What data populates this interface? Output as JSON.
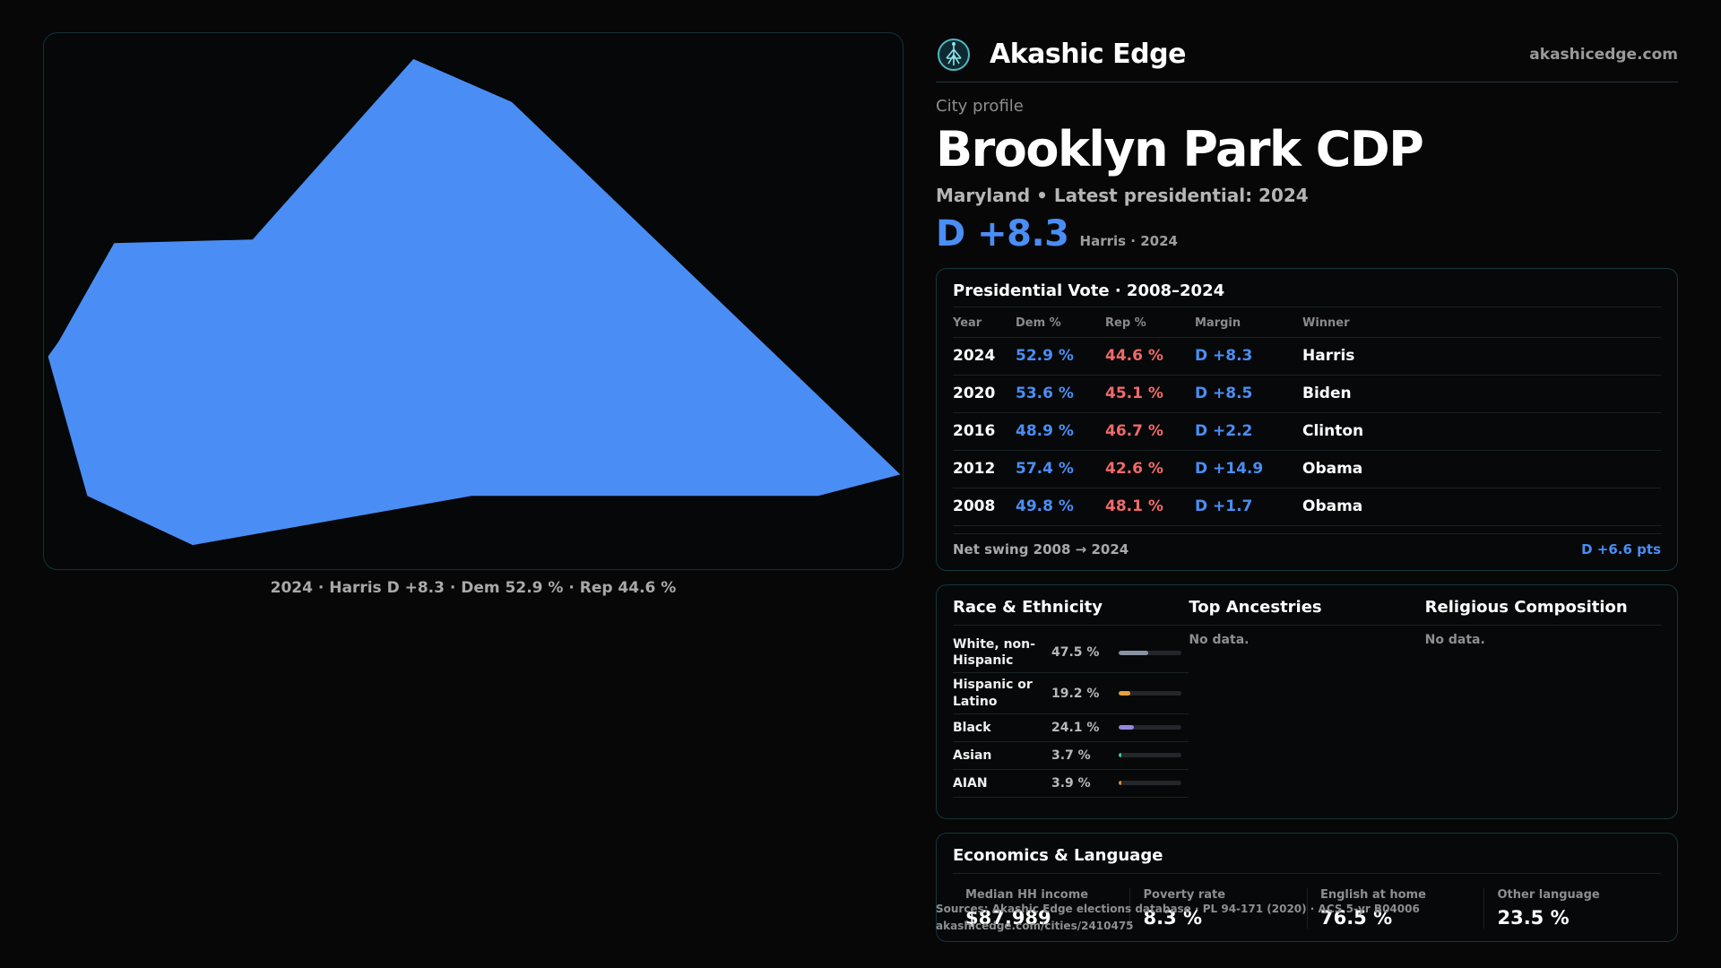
{
  "map": {
    "fill_color": "#4a8ef5",
    "caption": "2024 · Harris D +8.3 · Dem 52.9 % · Rep 44.6 %"
  },
  "header": {
    "brand_name": "Akashic Edge",
    "brand_url": "akashicedge.com",
    "logo_icon": "tree-of-life-icon"
  },
  "profile": {
    "eyebrow": "City profile",
    "title": "Brooklyn Park CDP",
    "subtitle": "Maryland • Latest presidential: 2024",
    "headline_margin": "D +8.3",
    "headline_note": "Harris · 2024"
  },
  "presidential": {
    "title": "Presidential Vote · 2008–2024",
    "columns": [
      "Year",
      "Dem %",
      "Rep %",
      "Margin",
      "Winner"
    ],
    "rows": [
      {
        "year": "2024",
        "dem": "52.9 %",
        "rep": "44.6 %",
        "margin": "D +8.3",
        "winner": "Harris"
      },
      {
        "year": "2020",
        "dem": "53.6 %",
        "rep": "45.1 %",
        "margin": "D +8.5",
        "winner": "Biden"
      },
      {
        "year": "2016",
        "dem": "48.9 %",
        "rep": "46.7 %",
        "margin": "D +2.2",
        "winner": "Clinton"
      },
      {
        "year": "2012",
        "dem": "57.4 %",
        "rep": "42.6 %",
        "margin": "D +14.9",
        "winner": "Obama"
      },
      {
        "year": "2008",
        "dem": "49.8 %",
        "rep": "48.1 %",
        "margin": "D +1.7",
        "winner": "Obama"
      }
    ],
    "swing_label": "Net swing 2008 → 2024",
    "swing_value": "D +6.6 pts"
  },
  "race": {
    "title": "Race & Ethnicity",
    "items": [
      {
        "label": "White, non-Hispanic",
        "pct": "47.5 %",
        "value": 47.5,
        "color": "#8a93a3"
      },
      {
        "label": "Hispanic or Latino",
        "pct": "19.2 %",
        "value": 19.2,
        "color": "#e8a23a"
      },
      {
        "label": "Black",
        "pct": "24.1 %",
        "value": 24.1,
        "color": "#9686e0"
      },
      {
        "label": "Asian",
        "pct": "3.7 %",
        "value": 3.7,
        "color": "#3fc7a0"
      },
      {
        "label": "AIAN",
        "pct": "3.9 %",
        "value": 3.9,
        "color": "#e0883a"
      }
    ]
  },
  "ancestries": {
    "title": "Top Ancestries",
    "empty": "No data."
  },
  "religion": {
    "title": "Religious Composition",
    "empty": "No data."
  },
  "economics": {
    "title": "Economics & Language",
    "stats": [
      {
        "label": "Median HH income",
        "value": "$87,989"
      },
      {
        "label": "Poverty rate",
        "value": "8.3 %"
      },
      {
        "label": "English at home",
        "value": "76.5 %"
      },
      {
        "label": "Other language",
        "value": "23.5 %"
      }
    ]
  },
  "footer": {
    "source": "Sources: Akashic Edge elections database · PL 94-171 (2020) · ACS 5-yr B04006",
    "url": "akashicedge.com/cities/2410475"
  }
}
